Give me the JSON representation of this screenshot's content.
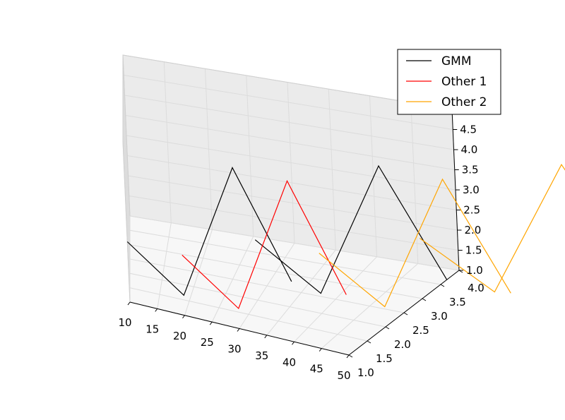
{
  "chart_data": {
    "type": "line",
    "projection": "3d",
    "title": "",
    "xlabel": "",
    "ylabel": "",
    "zlabel": "",
    "xlim": [
      10,
      50
    ],
    "ylim": [
      1.0,
      4.0
    ],
    "zlim": [
      1.0,
      5.0
    ],
    "x_ticks": [
      "10",
      "15",
      "20",
      "25",
      "30",
      "35",
      "40",
      "45",
      "50"
    ],
    "y_ticks": [
      "1.0",
      "1.5",
      "2.0",
      "2.5",
      "3.0",
      "3.5",
      "4.0"
    ],
    "z_ticks": [
      "1.0",
      "1.5",
      "2.0",
      "2.5",
      "3.0",
      "3.5",
      "4.0",
      "4.5",
      "5.0"
    ],
    "grid": true,
    "legend": {
      "placement": "top-right",
      "entries": [
        "GMM",
        "Other 1",
        "Other 2"
      ]
    },
    "series": [
      {
        "name": "GMM",
        "color": "#000000",
        "segments": [
          {
            "x": [
              10,
              20,
              30,
              40
            ],
            "y": [
              1,
              1,
              1,
              1
            ],
            "z": [
              2.5,
              1.5,
              5,
              2.5
            ]
          },
          {
            "x": [
              30,
              40,
              50,
              60
            ],
            "y": [
              2,
              2,
              2,
              2
            ],
            "z": [
              2.5,
              1.5,
              5,
              2.5
            ]
          }
        ]
      },
      {
        "name": "Other 1",
        "color": "#ff0000",
        "segments": [
          {
            "x": [
              20,
              30,
              40,
              50
            ],
            "y": [
              1,
              1,
              1,
              1
            ],
            "z": [
              2.5,
              1.5,
              5,
              2.5
            ]
          }
        ]
      },
      {
        "name": "Other 2",
        "color": "#ffa500",
        "segments": [
          {
            "x": [
              40,
              50,
              60,
              70
            ],
            "y": [
              2,
              2,
              2,
              2
            ],
            "z": [
              2.5,
              1.5,
              5,
              2.5
            ]
          },
          {
            "x": [
              50,
              60,
              70,
              80
            ],
            "y": [
              3,
              3,
              3,
              3
            ],
            "z": [
              2.5,
              1.5,
              5,
              2.5
            ]
          }
        ]
      }
    ]
  }
}
